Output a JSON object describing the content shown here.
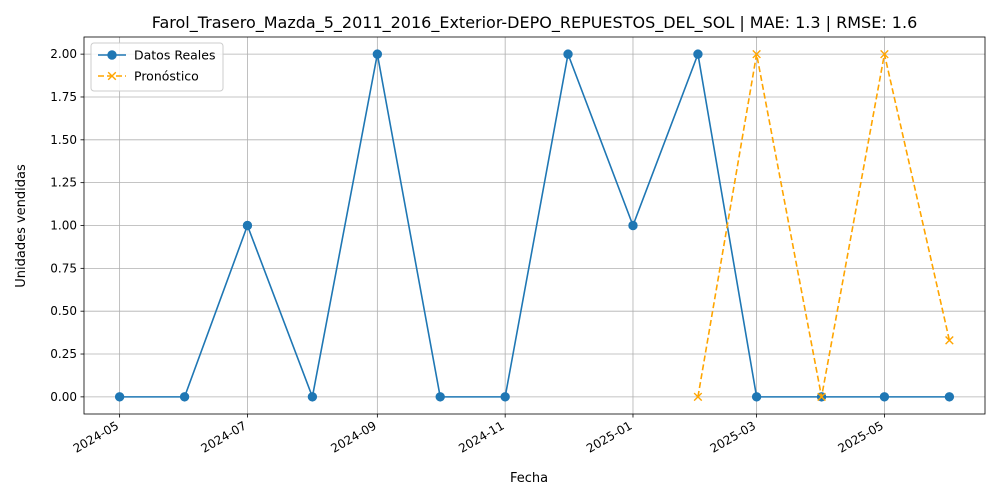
{
  "chart_data": {
    "type": "line",
    "title": "Farol_Trasero_Mazda_5_2011_2016_Exterior-DEPO_REPUESTOS_DEL_SOL | MAE: 1.3 | RMSE: 1.6",
    "xlabel": "Fecha",
    "ylabel": "Unidades vendidas",
    "ylim": [
      -0.1,
      2.1
    ],
    "y_ticks": [
      0.0,
      0.25,
      0.5,
      0.75,
      1.0,
      1.25,
      1.5,
      1.75,
      2.0
    ],
    "y_tick_labels": [
      "0.00",
      "0.25",
      "0.50",
      "0.75",
      "1.00",
      "1.25",
      "1.50",
      "1.75",
      "2.00"
    ],
    "x_ticks": [
      "2024-05-01",
      "2024-07-01",
      "2024-09-01",
      "2024-11-01",
      "2025-01-01",
      "2025-03-01",
      "2025-05-01"
    ],
    "x_tick_labels": [
      "2024-05",
      "2024-07",
      "2024-09",
      "2024-11",
      "2025-01",
      "2025-03",
      "2025-05"
    ],
    "xlim": [
      "2024-04-14",
      "2025-06-18"
    ],
    "grid": true,
    "legend_position": "top-left",
    "series": [
      {
        "name": "Datos Reales",
        "color": "#1f77b4",
        "style": "solid",
        "marker": "circle",
        "x": [
          "2024-05-01",
          "2024-06-01",
          "2024-07-01",
          "2024-08-01",
          "2024-09-01",
          "2024-10-01",
          "2024-11-01",
          "2024-12-01",
          "2025-01-01",
          "2025-02-01",
          "2025-03-01",
          "2025-04-01",
          "2025-05-01",
          "2025-06-01"
        ],
        "values": [
          0,
          0,
          1,
          0,
          2,
          0,
          0,
          2,
          1,
          2,
          0,
          0,
          0,
          0
        ]
      },
      {
        "name": "Pronóstico",
        "color": "#ffa500",
        "style": "dashed",
        "marker": "x",
        "x": [
          "2025-02-01",
          "2025-03-01",
          "2025-04-01",
          "2025-05-01",
          "2025-06-01"
        ],
        "values": [
          0.0,
          2.0,
          0.0,
          2.0,
          0.33
        ]
      }
    ]
  }
}
